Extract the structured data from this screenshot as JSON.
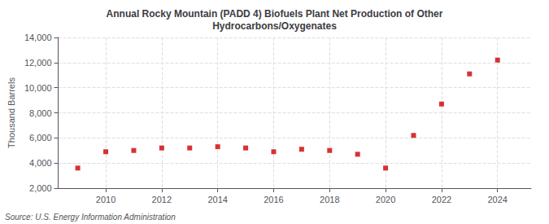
{
  "chart_data": {
    "type": "scatter",
    "title": "Annual Rocky Mountain (PADD 4) Biofuels Plant Net Production of Other\nHydrocarbons/Oxygenates",
    "ylabel": "Thousand Barrels",
    "source": "Source: U.S. Energy Information Administration",
    "x": [
      2009,
      2010,
      2011,
      2012,
      2013,
      2014,
      2015,
      2016,
      2017,
      2018,
      2019,
      2020,
      2021,
      2022,
      2023,
      2024
    ],
    "values": [
      3600,
      4900,
      5000,
      5200,
      5200,
      5300,
      5200,
      4900,
      5100,
      5000,
      4700,
      3600,
      6200,
      8700,
      11100,
      12200
    ],
    "color": "#cc0000",
    "marker": "square",
    "xlim": [
      2008.3,
      2025.2
    ],
    "xticks": [
      2010,
      2012,
      2014,
      2016,
      2018,
      2020,
      2022,
      2024
    ],
    "ylim": [
      2000,
      14000
    ],
    "yticks": [
      {
        "value": 2000,
        "label": "2,000"
      },
      {
        "value": 4000,
        "label": "4,000"
      },
      {
        "value": 6000,
        "label": "6,000"
      },
      {
        "value": 8000,
        "label": "8,000"
      },
      {
        "value": 10000,
        "label": "10,000"
      },
      {
        "value": 12000,
        "label": "12,000"
      },
      {
        "value": 14000,
        "label": "14,000"
      }
    ],
    "grid": true
  }
}
